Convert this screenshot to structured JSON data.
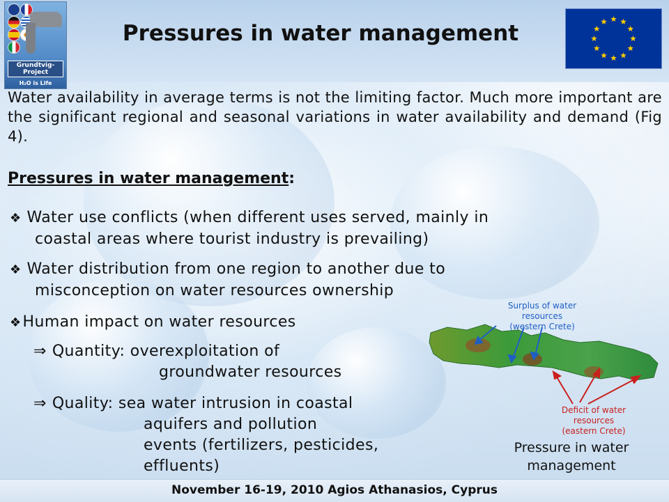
{
  "header": {
    "title": "Pressures in water management",
    "logo": {
      "line1": "Grundtvig-Project",
      "line2": "H₂O is Life",
      "flags": [
        "gb",
        "fr",
        "de",
        "gr",
        "es",
        "cy",
        "it"
      ]
    },
    "eu_flag_icon": "eu-flag-icon"
  },
  "intro_text": "Water availability in average terms is not the limiting factor. Much more important are the significant regional and seasonal variations in water availability and demand (Fig 4).",
  "section_heading": "Pressures in water management",
  "section_heading_suffix": ":",
  "bullet_symbol": "❖",
  "arrow_symbol": "⇒",
  "bullets": [
    {
      "line1": "Water use conflicts (when different uses served, mainly in",
      "line2": "coastal areas where tourist industry is prevailing)"
    },
    {
      "line1": "Water distribution from one region to another due to",
      "line2": "misconception on water resources ownership"
    },
    {
      "line1": "Human impact on water resources"
    }
  ],
  "sub_bullets": [
    {
      "label": "Quantity:",
      "line1": "overexploitation of",
      "line2": "groundwater resources"
    },
    {
      "label": "Quality:",
      "line1": "sea water intrusion in coastal",
      "line2": "aquifers and pollution",
      "line3": "events (fertilizers, pesticides,",
      "line4": "effluents)"
    }
  ],
  "map": {
    "surplus_label": [
      "Surplus of water",
      "resources",
      "(western Crete)"
    ],
    "deficit_label": [
      "Deficit of water",
      "resources",
      "(eastern Crete)"
    ],
    "caption_line1": "Pressure in water",
    "caption_line2": "management",
    "colors": {
      "surplus": "#1f5fc4",
      "deficit": "#c9201e",
      "land": "#3c9a3a"
    }
  },
  "footer": "November 16-19, 2010 Agios Athanasios, Cyprus"
}
